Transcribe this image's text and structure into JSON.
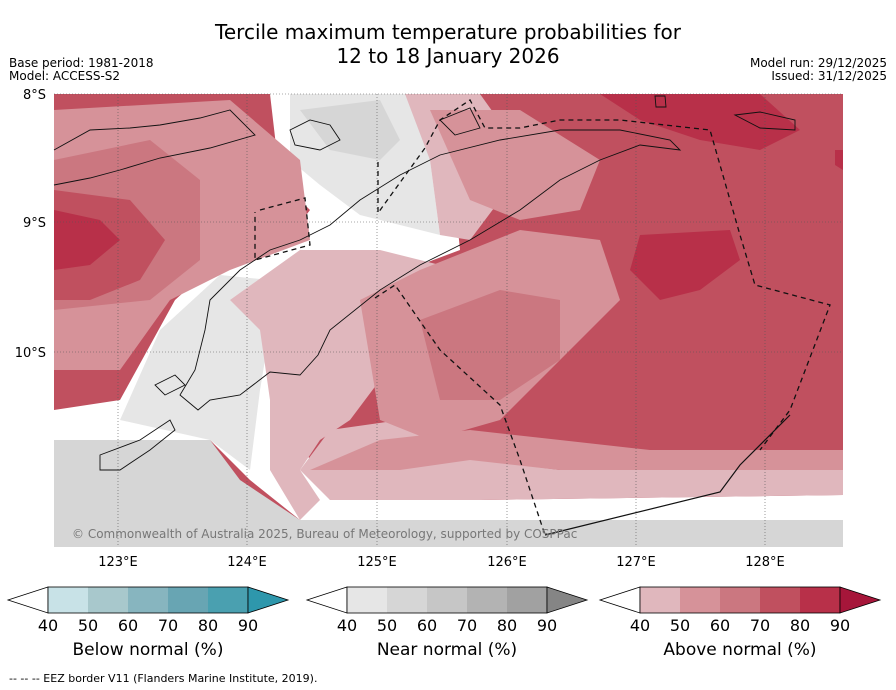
{
  "header": {
    "title_line1": "Tercile maximum temperature probabilities for",
    "title_line2": "12 to 18 January 2026",
    "base_period": "Base period: 1981-2018",
    "model": "Model: ACCESS-S2",
    "model_run": "Model run: 29/12/2025",
    "issued": "Issued: 31/12/2025"
  },
  "map": {
    "lat_labels": [
      "8°S",
      "9°S",
      "10°S"
    ],
    "lon_labels": [
      "123°E",
      "124°E",
      "125°E",
      "126°E",
      "127°E",
      "128°E"
    ],
    "copyright": "© Commonwealth of Australia 2025, Bureau of Meteorology, supported by COSPPac"
  },
  "legends": [
    {
      "name": "below",
      "label": "Below normal (%)",
      "ticks": [
        "40",
        "50",
        "60",
        "70",
        "80",
        "90"
      ],
      "colors": [
        "#c8e2e7",
        "#a8c8cc",
        "#87b5bf",
        "#68a5b3",
        "#4aa0b0",
        "#2e97ac"
      ]
    },
    {
      "name": "near",
      "label": "Near normal (%)",
      "ticks": [
        "40",
        "50",
        "60",
        "70",
        "80",
        "90"
      ],
      "colors": [
        "#e6e6e6",
        "#d6d6d6",
        "#c6c6c6",
        "#b3b3b3",
        "#a1a1a1",
        "#858585"
      ]
    },
    {
      "name": "above",
      "label": "Above normal (%)",
      "ticks": [
        "40",
        "50",
        "60",
        "70",
        "80",
        "90"
      ],
      "colors": [
        "#e0b7bd",
        "#d69299",
        "#cb7780",
        "#c0505f",
        "#b83049",
        "#a6163a"
      ]
    }
  ],
  "footer": {
    "eez_note": "-- -- -- EEZ border V11 (Flanders Marine Institute, 2019)."
  }
}
